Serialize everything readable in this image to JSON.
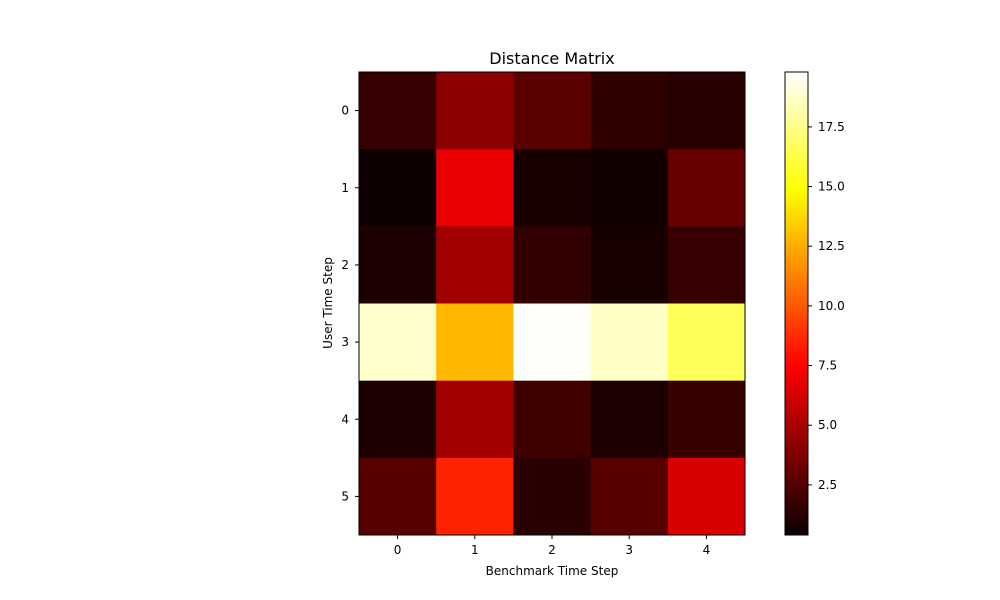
{
  "chart_data": {
    "type": "heatmap",
    "title": "Distance Matrix",
    "xlabel": "Benchmark Time Step",
    "ylabel": "User Time Step",
    "x_categories": [
      "0",
      "1",
      "2",
      "3",
      "4"
    ],
    "y_categories": [
      "0",
      "1",
      "2",
      "3",
      "4",
      "5"
    ],
    "values": [
      [
        1.6,
        4.0,
        2.6,
        1.4,
        1.2
      ],
      [
        0.5,
        6.6,
        0.8,
        0.6,
        3.0
      ],
      [
        0.9,
        4.6,
        1.5,
        0.8,
        1.6
      ],
      [
        18.8,
        12.8,
        19.7,
        18.7,
        16.6
      ],
      [
        0.9,
        4.6,
        1.9,
        0.9,
        1.7
      ],
      [
        2.5,
        8.5,
        1.3,
        2.5,
        6.2
      ]
    ],
    "colormap": "hot",
    "vmin": 0.4,
    "vmax": 19.8,
    "colorbar_ticks": [
      2.5,
      5.0,
      7.5,
      10.0,
      12.5,
      15.0,
      17.5
    ],
    "colorbar_tick_labels": [
      "2.5",
      "5.0",
      "7.5",
      "10.0",
      "12.5",
      "15.0",
      "17.5"
    ],
    "grid": false
  }
}
